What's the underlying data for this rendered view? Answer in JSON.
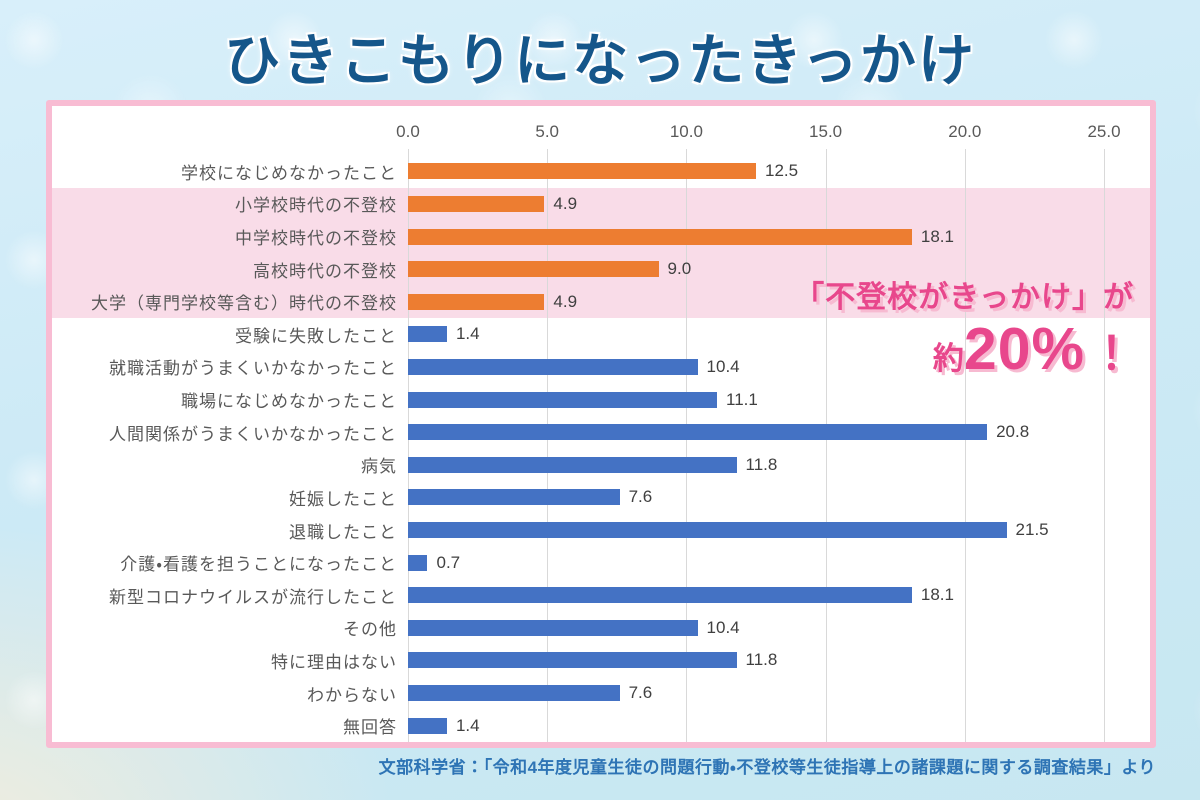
{
  "page": {
    "title": "ひきこもりになったきっかけ",
    "source": "文部科学省：「令和4年度児童生徒の問題行動・不登校等生徒指導上の諸課題に関する調査結果」より"
  },
  "annotation": {
    "line1": "「不登校がきっかけ」が",
    "approx": "約",
    "percent": "20%",
    "exclamation": "！"
  },
  "chart_data": {
    "type": "bar",
    "orientation": "horizontal",
    "title": "ひきこもりになったきっかけ",
    "xlabel": "",
    "ylabel": "",
    "xlim": [
      0,
      25
    ],
    "x_ticks": [
      "0.0",
      "5.0",
      "10.0",
      "15.0",
      "20.0",
      "25.0"
    ],
    "grid": true,
    "legend": "none",
    "categories": [
      "学校になじめなかったこと",
      "小学校時代の不登校",
      "中学校時代の不登校",
      "高校時代の不登校",
      "大学（専門学校等含む）時代の不登校",
      "受験に失敗したこと",
      "就職活動がうまくいかなかったこと",
      "職場になじめなかったこと",
      "人間関係がうまくいかなかったこと",
      "病気",
      "妊娠したこと",
      "退職したこと",
      "介護・看護を担うことになったこと",
      "新型コロナウイルスが流行したこと",
      "その他",
      "特に理由はない",
      "わからない",
      "無回答"
    ],
    "values": [
      12.5,
      4.9,
      18.1,
      9.0,
      4.9,
      1.4,
      10.4,
      11.1,
      20.8,
      11.8,
      7.6,
      21.5,
      0.7,
      18.1,
      10.4,
      11.8,
      7.6,
      1.4
    ],
    "value_labels": [
      "12.5",
      "4.9",
      "18.1",
      "9.0",
      "4.9",
      "1.4",
      "10.4",
      "11.1",
      "20.8",
      "11.8",
      "7.6",
      "21.5",
      "0.7",
      "18.1",
      "10.4",
      "11.8",
      "7.6",
      "1.4"
    ],
    "orange_row_indexes": [
      0,
      1,
      2,
      3,
      4
    ],
    "highlight_band_rows": [
      1,
      2,
      3,
      4
    ],
    "colors": {
      "bar_orange": "#ed7d31",
      "bar_blue": "#4472c4",
      "highlight_band": "#f9dce8",
      "panel_border": "#f8bcd3",
      "annotation_pink": "#e8478c",
      "annotation_shadow": "#f7bad1",
      "title_blue": "#15568a",
      "source_blue": "#2e74b5",
      "gridline": "#d9d9d9",
      "label_gray": "#595959",
      "value_gray": "#404040"
    }
  }
}
